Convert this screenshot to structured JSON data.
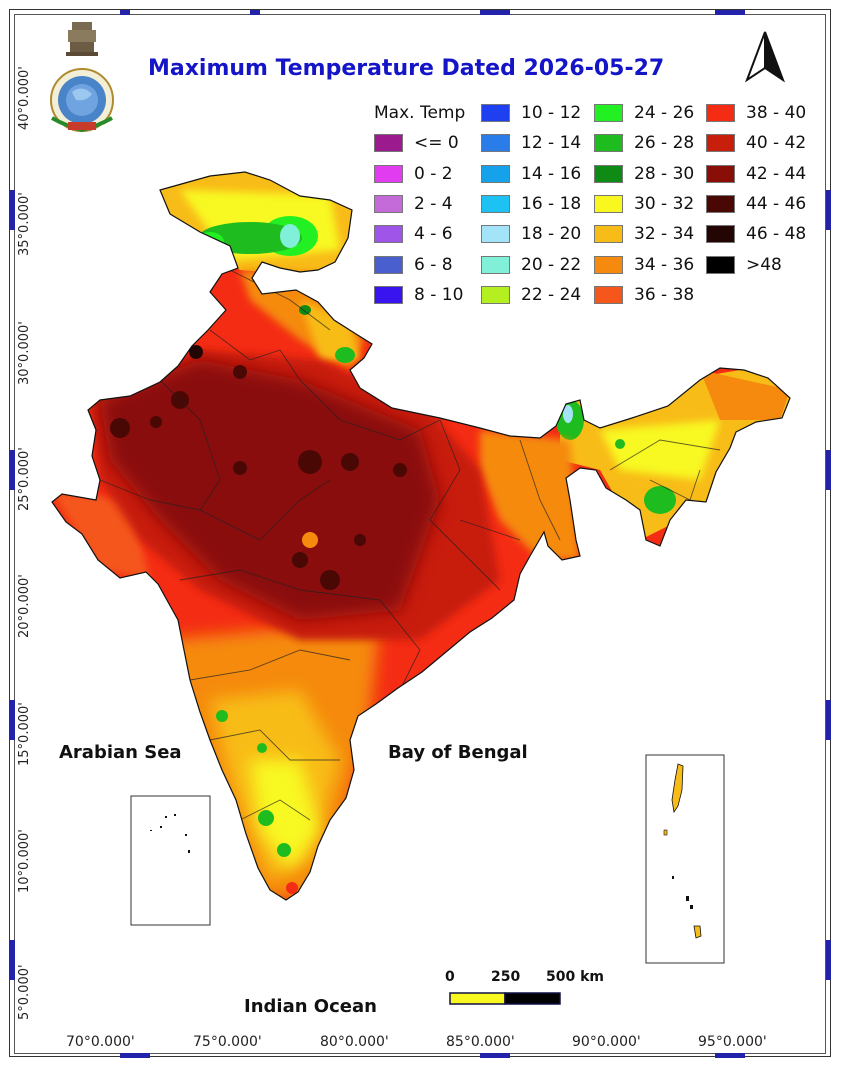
{
  "title": "Maximum Temperature Dated 2026-05-27",
  "legend": {
    "title": "Max. Temp",
    "items": [
      {
        "label": "<= 0",
        "color": "#9b1a8e"
      },
      {
        "label": "0 - 2",
        "color": "#e23cf0"
      },
      {
        "label": "2 - 4",
        "color": "#c46bd9"
      },
      {
        "label": "4 - 6",
        "color": "#9e55e8"
      },
      {
        "label": "6 - 8",
        "color": "#4a5fce"
      },
      {
        "label": "8 - 10",
        "color": "#3a14ee"
      },
      {
        "label": "10 - 12",
        "color": "#1f40f0"
      },
      {
        "label": "12 - 14",
        "color": "#2a7de8"
      },
      {
        "label": "14 - 16",
        "color": "#16a2ea"
      },
      {
        "label": "16 - 18",
        "color": "#1cc2f2"
      },
      {
        "label": "18 - 20",
        "color": "#a4e4f8"
      },
      {
        "label": "20 - 22",
        "color": "#80f0d8"
      },
      {
        "label": "22 - 24",
        "color": "#b4f020"
      },
      {
        "label": "24 - 26",
        "color": "#22f022"
      },
      {
        "label": "26 - 28",
        "color": "#1ebc1e"
      },
      {
        "label": "28 - 30",
        "color": "#0f8a14"
      },
      {
        "label": "30 - 32",
        "color": "#f8f820"
      },
      {
        "label": "32 - 34",
        "color": "#f8bc18"
      },
      {
        "label": "34 - 36",
        "color": "#f58a0e"
      },
      {
        "label": "36 - 38",
        "color": "#f4561c"
      },
      {
        "label": "38 - 40",
        "color": "#f42c14"
      },
      {
        "label": "40 - 42",
        "color": "#c81e0c"
      },
      {
        "label": "42 - 44",
        "color": "#8a0e08"
      },
      {
        "label": "44 - 46",
        "color": "#4a0805"
      },
      {
        "label": "46 - 48",
        "color": "#230504"
      },
      {
        "label": ">48",
        "color": "#000000"
      }
    ]
  },
  "latitude_labels": [
    "40°0.000'",
    "35°0.000'",
    "30°0.000'",
    "25°0.000'",
    "20°0.000'",
    "15°0.000'",
    "10°0.000'",
    "5°0.000'"
  ],
  "longitude_labels": [
    "70°0.000'",
    "75°0.000'",
    "80°0.000'",
    "85°0.000'",
    "90°0.000'",
    "95°0.000'"
  ],
  "water_labels": {
    "arabian_sea": "Arabian Sea",
    "bay_of_bengal": "Bay of Bengal",
    "indian_ocean": "Indian Ocean"
  },
  "scale_bar": {
    "ticks": [
      "0",
      "250",
      "500 km"
    ],
    "colors": [
      "#f8f820",
      "#000000"
    ]
  },
  "north_arrow_icon": "north-arrow-icon",
  "logo_icon": "imd-emblem-icon"
}
